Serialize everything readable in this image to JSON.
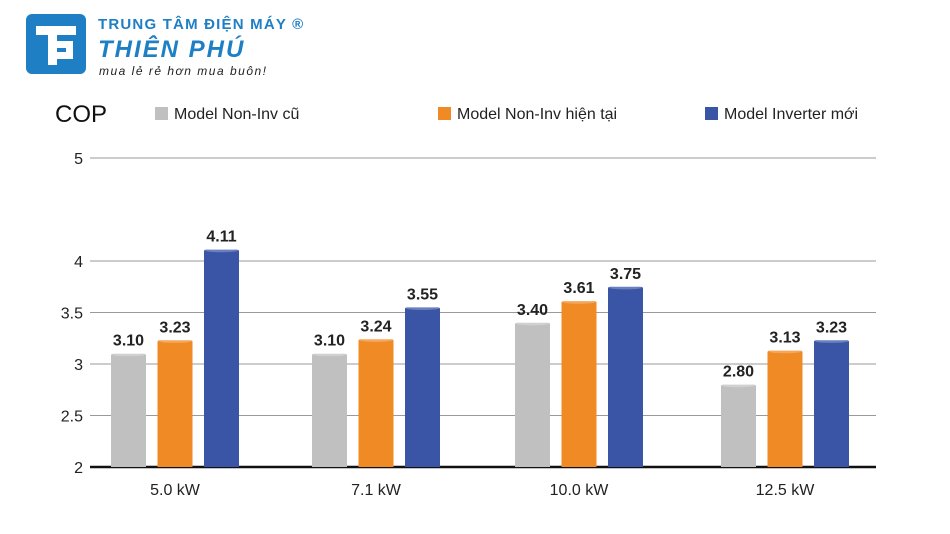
{
  "brand": {
    "top_line": "TRUNG TÂM ĐIỆN MÁY ®",
    "name": "THIÊN PHÚ",
    "slogan": "mua lẻ rẻ hơn mua buôn!",
    "color": "#1e7fc4"
  },
  "chart_data": {
    "type": "bar",
    "ylabel": "COP",
    "xlabel": "",
    "ylim": [
      2,
      5
    ],
    "yticks": [
      "5",
      "4",
      "3.5",
      "3",
      "2.5",
      "2"
    ],
    "ytick_values": [
      5,
      4,
      3.5,
      3,
      2.5,
      2
    ],
    "grid": true,
    "legend_position": "top",
    "categories": [
      "5.0 kW",
      "7.1 kW",
      "10.0 kW",
      "12.5 kW"
    ],
    "series": [
      {
        "name": "Model Non-Inv cũ",
        "color": "#c0c0c0",
        "values": [
          3.1,
          3.1,
          3.4,
          2.8
        ],
        "labels": [
          "3.10",
          "3.10",
          "3.40",
          "2.80"
        ]
      },
      {
        "name": "Model Non-Inv hiện tại",
        "color": "#f08a24",
        "values": [
          3.23,
          3.24,
          3.61,
          3.13
        ],
        "labels": [
          "3.23",
          "3.24",
          "3.61",
          "3.13"
        ]
      },
      {
        "name": "Model Inverter mới",
        "color": "#3a55a6",
        "values": [
          4.11,
          3.55,
          3.75,
          3.23
        ],
        "labels": [
          "4.11",
          "3.55",
          "3.75",
          "3.23"
        ]
      }
    ]
  }
}
